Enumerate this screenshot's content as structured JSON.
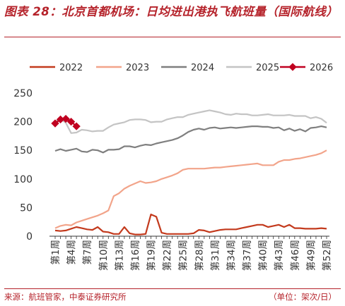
{
  "header": {
    "title": "图表 28：北京首都机场：日均进出港执飞航班量（国际航线）"
  },
  "footer": {
    "source": "来源：航班管家，中泰证券研究所",
    "unit": "（单位：架次/日）"
  },
  "chart_data": {
    "type": "line",
    "title": "",
    "xlabel": "",
    "ylabel": "",
    "ylim": [
      0,
      250
    ],
    "yticks": [
      0,
      50,
      100,
      150,
      200,
      250
    ],
    "grid": false,
    "legend_position": "top",
    "x_tick_labels": [
      "第1周",
      "第4周",
      "第7周",
      "第10周",
      "第13周",
      "第16周",
      "第19周",
      "第22周",
      "第25周",
      "第28周",
      "第31周",
      "第34周",
      "第37周",
      "第40周",
      "第43周",
      "第46周",
      "第49周",
      "第52周"
    ],
    "x_tick_weeks": [
      1,
      4,
      7,
      10,
      13,
      16,
      19,
      22,
      25,
      28,
      31,
      34,
      37,
      40,
      43,
      46,
      49,
      52
    ],
    "series": [
      {
        "name": "2022",
        "color": "#c33a1d",
        "marker": false,
        "x": [
          1,
          2,
          3,
          4,
          5,
          6,
          7,
          8,
          9,
          10,
          11,
          12,
          13,
          14,
          15,
          16,
          17,
          18,
          19,
          20,
          21,
          22,
          23,
          24,
          25,
          26,
          27,
          28,
          29,
          30,
          31,
          32,
          33,
          34,
          35,
          36,
          37,
          38,
          39,
          40,
          41,
          42,
          43,
          44,
          45,
          46,
          47,
          48,
          49,
          50,
          51,
          52
        ],
        "values": [
          10,
          9,
          10,
          13,
          16,
          14,
          12,
          11,
          16,
          8,
          7,
          4,
          4,
          16,
          5,
          3,
          3,
          4,
          38,
          34,
          6,
          4,
          4,
          4,
          4,
          4,
          5,
          11,
          10,
          7,
          9,
          11,
          12,
          12,
          12,
          14,
          16,
          18,
          20,
          20,
          16,
          18,
          20,
          16,
          20,
          14,
          14,
          13,
          13,
          13,
          14,
          13
        ]
      },
      {
        "name": "2023",
        "color": "#f2a48a",
        "marker": false,
        "x": [
          1,
          2,
          3,
          4,
          5,
          6,
          7,
          8,
          9,
          10,
          11,
          12,
          13,
          14,
          15,
          16,
          17,
          18,
          19,
          20,
          21,
          22,
          23,
          24,
          25,
          26,
          27,
          28,
          29,
          30,
          31,
          32,
          33,
          34,
          35,
          36,
          37,
          38,
          39,
          40,
          41,
          42,
          43,
          44,
          45,
          46,
          47,
          48,
          49,
          50,
          51,
          52
        ],
        "values": [
          14,
          18,
          20,
          19,
          24,
          27,
          30,
          33,
          36,
          40,
          45,
          70,
          75,
          83,
          88,
          92,
          96,
          93,
          94,
          96,
          100,
          103,
          106,
          110,
          116,
          118,
          118,
          118,
          118,
          119,
          120,
          120,
          121,
          122,
          123,
          124,
          125,
          126,
          127,
          124,
          124,
          124,
          130,
          133,
          133,
          135,
          136,
          138,
          140,
          142,
          145,
          150
        ]
      },
      {
        "name": "2024",
        "color": "#7f7f7f",
        "marker": false,
        "x": [
          1,
          2,
          3,
          4,
          5,
          6,
          7,
          8,
          9,
          10,
          11,
          12,
          13,
          14,
          15,
          16,
          17,
          18,
          19,
          20,
          21,
          22,
          23,
          24,
          25,
          26,
          27,
          28,
          29,
          30,
          31,
          32,
          33,
          34,
          35,
          36,
          37,
          38,
          39,
          40,
          41,
          42,
          43,
          44,
          45,
          46,
          47,
          48,
          49,
          50,
          51,
          52
        ],
        "values": [
          149,
          152,
          149,
          151,
          153,
          148,
          147,
          151,
          150,
          146,
          151,
          151,
          152,
          157,
          157,
          155,
          158,
          160,
          159,
          162,
          164,
          166,
          168,
          171,
          176,
          182,
          186,
          188,
          186,
          189,
          190,
          188,
          189,
          190,
          189,
          190,
          191,
          192,
          192,
          191,
          191,
          189,
          190,
          185,
          188,
          184,
          187,
          183,
          189,
          190,
          192,
          190
        ]
      },
      {
        "name": "2025",
        "color": "#c4c4c4",
        "marker": false,
        "x": [
          1,
          2,
          3,
          4,
          5,
          6,
          7,
          8,
          9,
          10,
          11,
          12,
          13,
          14,
          15,
          16,
          17,
          18,
          19,
          20,
          21,
          22,
          23,
          24,
          25,
          26,
          27,
          28,
          29,
          30,
          31,
          32,
          33,
          34,
          35,
          36,
          37,
          38,
          39,
          40,
          41,
          42,
          43,
          44,
          45,
          46,
          47,
          48,
          49,
          50,
          51,
          52
        ],
        "values": [
          200,
          205,
          198,
          180,
          181,
          186,
          185,
          183,
          184,
          184,
          190,
          195,
          197,
          199,
          203,
          204,
          204,
          203,
          199,
          200,
          200,
          204,
          206,
          208,
          208,
          212,
          214,
          216,
          218,
          220,
          218,
          216,
          213,
          212,
          214,
          213,
          213,
          211,
          211,
          212,
          213,
          211,
          211,
          211,
          212,
          210,
          210,
          210,
          206,
          208,
          205,
          198
        ]
      },
      {
        "name": "2026",
        "color": "#c00020",
        "marker": true,
        "x": [
          1,
          2,
          3,
          4,
          5
        ],
        "values": [
          197,
          204,
          205,
          200,
          192
        ]
      }
    ]
  }
}
